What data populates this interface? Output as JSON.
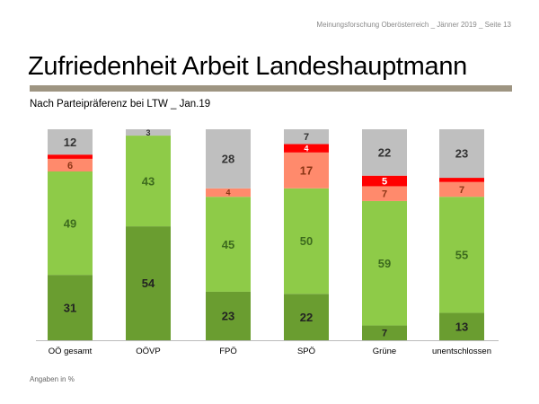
{
  "header": {
    "source": "Meinungsforschung Oberösterreich _ Jänner 2019 _ Seite 13"
  },
  "title": "Zufriedenheit Arbeit Landeshauptmann",
  "subtitle": "Nach Parteipräferenz bei LTW _ Jan.19",
  "footnote": "Angaben in %",
  "chart_data": {
    "type": "bar",
    "stacked": true,
    "orientation": "vertical",
    "ylim": [
      0,
      100
    ],
    "grid": false,
    "categories": [
      "OÖ gesamt",
      "OÖVP",
      "FPÖ",
      "SPÖ",
      "Grüne",
      "unentschlossen"
    ],
    "series": [
      {
        "color": "#6a9d30",
        "label_color": "#222222",
        "values": [
          31,
          54,
          23,
          22,
          7,
          13
        ],
        "labels": [
          "31",
          "54",
          "23",
          "22",
          "7",
          "13"
        ]
      },
      {
        "color": "#8ecb48",
        "label_color": "#3d6b1e",
        "values": [
          49,
          43,
          45,
          50,
          59,
          55
        ],
        "labels": [
          "49",
          "43",
          "45",
          "50",
          "59",
          "55"
        ]
      },
      {
        "color": "#ff8a6c",
        "label_color": "#8b3515",
        "values": [
          6,
          0,
          4,
          17,
          7,
          7
        ],
        "labels": [
          "6",
          "",
          "4",
          "17",
          "7",
          "7"
        ]
      },
      {
        "color": "#ff0000",
        "label_color": "#ffffff",
        "values": [
          2,
          0,
          0,
          4,
          5,
          2
        ],
        "labels": [
          "",
          "",
          "",
          "4",
          "5",
          ""
        ]
      },
      {
        "color": "#bfbfbf",
        "label_color": "#333333",
        "values": [
          12,
          3,
          28,
          7,
          22,
          23
        ],
        "labels": [
          "12",
          "3",
          "28",
          "7",
          "22",
          "23"
        ]
      }
    ]
  }
}
